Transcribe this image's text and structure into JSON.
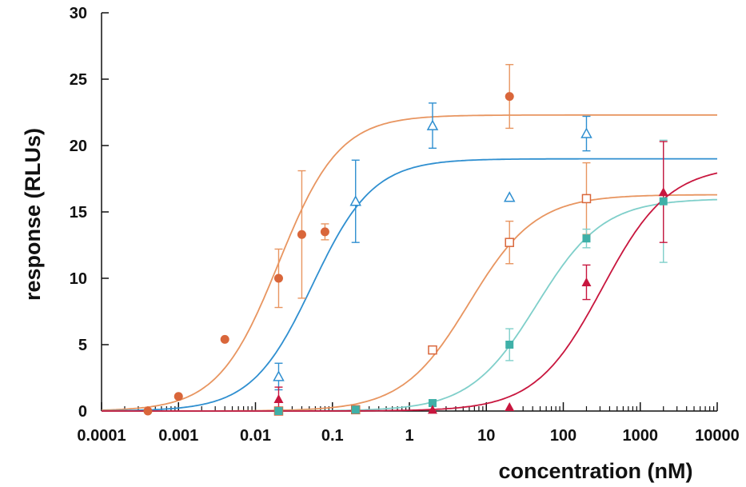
{
  "chart_data": {
    "type": "scatter",
    "xlabel": "concentration (nM)",
    "ylabel": "response (RLUs)",
    "xscale": "log",
    "xlim": [
      0.0001,
      10000
    ],
    "ylim": [
      0,
      30
    ],
    "x_ticks": [
      0.0001,
      0.001,
      0.01,
      0.1,
      1,
      10,
      100,
      1000,
      10000
    ],
    "x_tick_labels": [
      "0.0001",
      "0.001",
      "0.01",
      "0.1",
      "1",
      "10",
      "100",
      "1000",
      "10000"
    ],
    "y_ticks": [
      0,
      5,
      10,
      15,
      20,
      25,
      30
    ],
    "y_tick_labels": [
      "0",
      "5",
      "10",
      "15",
      "20",
      "25",
      "30"
    ],
    "grid": false,
    "legend": false,
    "series": [
      {
        "marker": "filled-circle",
        "color": "#d9663a",
        "curve_color": "#e89560",
        "fit": {
          "bottom": 0,
          "top": 22.3,
          "ec50": 0.02,
          "hill": 1.1
        },
        "points": [
          {
            "x": 0.0004,
            "y": 0
          },
          {
            "x": 0.001,
            "y": 1.1
          },
          {
            "x": 0.004,
            "y": 5.4
          },
          {
            "x": 0.02,
            "y": 10,
            "err": 2.2
          },
          {
            "x": 0.04,
            "y": 13.3,
            "err": 4.8
          },
          {
            "x": 0.08,
            "y": 13.5,
            "err": 0.6
          },
          {
            "x": 20,
            "y": 23.7,
            "err": 2.4
          }
        ]
      },
      {
        "marker": "open-triangle",
        "color": "#2f8fd0",
        "curve_color": "#2f8fd0",
        "fit": {
          "bottom": 0,
          "top": 19.0,
          "ec50": 0.055,
          "hill": 1.1
        },
        "points": [
          {
            "x": 0.02,
            "y": 2.6,
            "err": 1.0
          },
          {
            "x": 0.2,
            "y": 15.8,
            "err": 3.1
          },
          {
            "x": 2,
            "y": 21.5,
            "err": 1.7
          },
          {
            "x": 200,
            "y": 20.9,
            "err": 1.3
          }
        ]
      },
      {
        "marker": "open-square",
        "color": "#d9663a",
        "curve_color": "#e89560",
        "fit": {
          "bottom": 0,
          "top": 16.3,
          "ec50": 6,
          "hill": 1.0
        },
        "points": [
          {
            "x": 0.02,
            "y": 0
          },
          {
            "x": 0.2,
            "y": 0.1
          },
          {
            "x": 2,
            "y": 4.6
          },
          {
            "x": 20,
            "y": 12.7,
            "err": 1.6
          },
          {
            "x": 200,
            "y": 16,
            "err": 2.7
          }
        ]
      },
      {
        "marker": "filled-square",
        "color": "#3fb0a8",
        "curve_color": "#7fcfca",
        "fit": {
          "bottom": 0,
          "top": 16.0,
          "ec50": 45,
          "hill": 1.0
        },
        "points": [
          {
            "x": 0.02,
            "y": 0
          },
          {
            "x": 0.2,
            "y": 0.1
          },
          {
            "x": 2,
            "y": 0.6
          },
          {
            "x": 20,
            "y": 5,
            "err": 1.2
          },
          {
            "x": 200,
            "y": 13,
            "err": 0.7
          },
          {
            "x": 2000,
            "y": 15.8,
            "err": 4.6
          }
        ]
      },
      {
        "marker": "filled-triangle",
        "color": "#c8163e",
        "curve_color": "#c8163e",
        "fit": {
          "bottom": 0,
          "top": 18.5,
          "ec50": 320,
          "hill": 1.0
        },
        "points": [
          {
            "x": 0.02,
            "y": 0.9,
            "err": 0.9
          },
          {
            "x": 2,
            "y": 0.1
          },
          {
            "x": 20,
            "y": 0.3
          },
          {
            "x": 200,
            "y": 9.7,
            "err": 1.3
          },
          {
            "x": 2000,
            "y": 16.5,
            "err": 3.8
          }
        ]
      }
    ],
    "extra_points": [
      {
        "x": 20,
        "y": 16.1,
        "marker": "open-triangle",
        "color": "#2f8fd0"
      }
    ]
  }
}
